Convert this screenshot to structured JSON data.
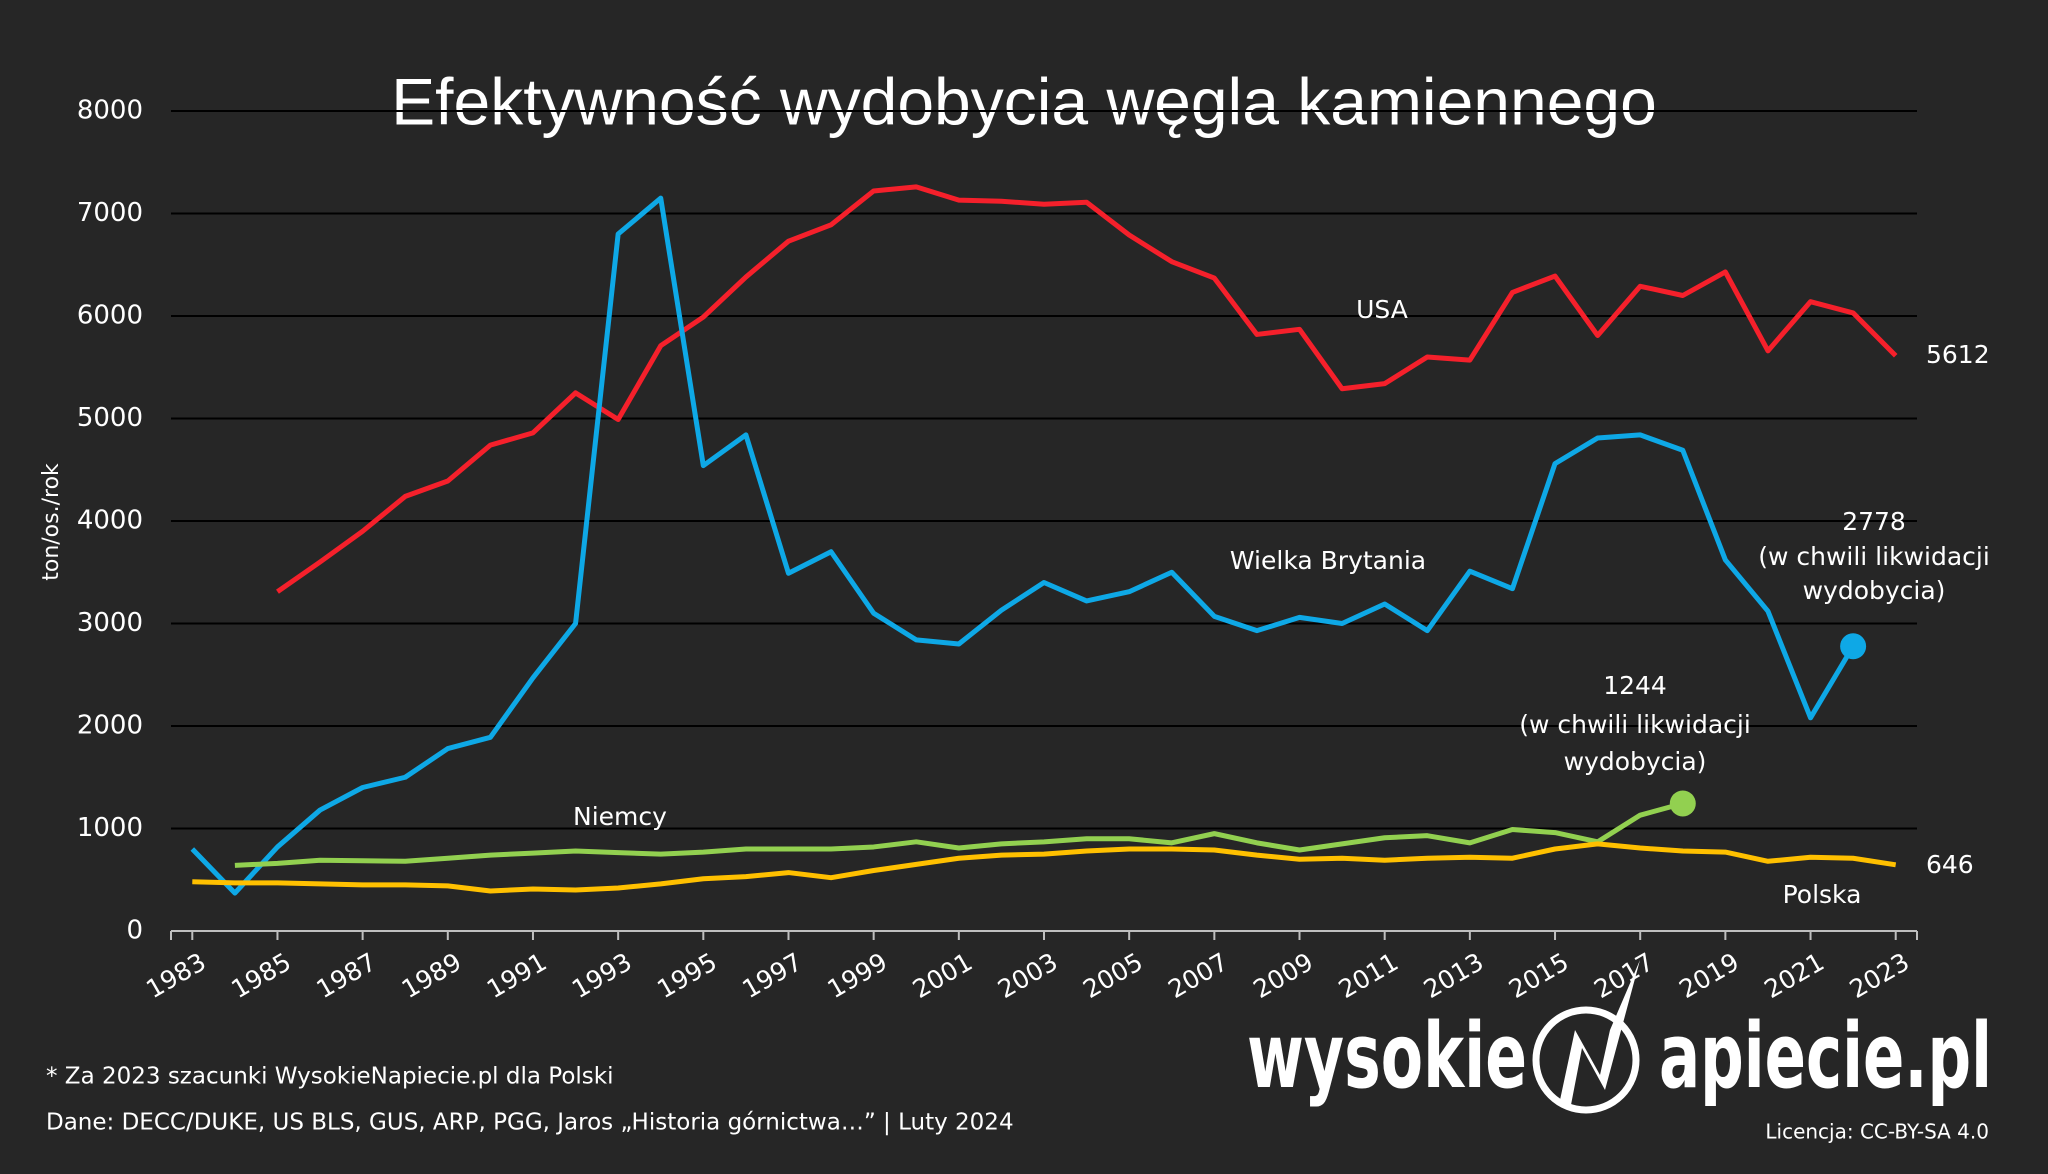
{
  "chart_data": {
    "type": "line",
    "title": "Efektywność wydobycia węgla kamiennego",
    "y_label": "ton/os./rok",
    "x": [
      1983,
      1984,
      1985,
      1986,
      1987,
      1988,
      1989,
      1990,
      1991,
      1992,
      1993,
      1994,
      1995,
      1996,
      1997,
      1998,
      1999,
      2000,
      2001,
      2002,
      2003,
      2004,
      2005,
      2006,
      2007,
      2008,
      2009,
      2010,
      2011,
      2012,
      2013,
      2014,
      2015,
      2016,
      2017,
      2018,
      2019,
      2020,
      2021,
      2022,
      2023
    ],
    "xlim": [
      1982.5,
      2023.5
    ],
    "xticks": [
      1983,
      1985,
      1987,
      1989,
      1991,
      1993,
      1995,
      1997,
      1999,
      2001,
      2003,
      2005,
      2007,
      2009,
      2011,
      2013,
      2015,
      2017,
      2019,
      2021,
      2023
    ],
    "ylim": [
      0,
      8000
    ],
    "yticks": [
      0,
      1000,
      2000,
      3000,
      4000,
      5000,
      6000,
      7000,
      8000
    ],
    "grid": true,
    "series": [
      {
        "name": "USA",
        "color": "#f5202b",
        "values": [
          null,
          null,
          3310,
          3600,
          3900,
          4240,
          4390,
          4740,
          4860,
          5250,
          4990,
          5710,
          5990,
          6380,
          6730,
          6890,
          7220,
          7260,
          7130,
          7120,
          7090,
          7110,
          6790,
          6530,
          6370,
          5820,
          5870,
          5290,
          5340,
          5600,
          5570,
          6230,
          6390,
          5810,
          6290,
          6200,
          6430,
          5660,
          6140,
          6030,
          5612
        ]
      },
      {
        "name": "Wielka Brytania",
        "color": "#0ea8e6",
        "values": [
          800,
          370,
          820,
          1180,
          1400,
          1500,
          1780,
          1890,
          2470,
          3000,
          6800,
          7150,
          4540,
          4840,
          3490,
          3700,
          3100,
          2840,
          2800,
          3130,
          3400,
          3220,
          3310,
          3500,
          3070,
          2930,
          3060,
          3000,
          3190,
          2930,
          3510,
          3340,
          4560,
          4810,
          4840,
          4690,
          3620,
          3120,
          2080,
          2778,
          null
        ]
      },
      {
        "name": "Niemcy",
        "color": "#92d050",
        "values": [
          null,
          640,
          660,
          690,
          685,
          680,
          710,
          740,
          760,
          780,
          765,
          750,
          770,
          800,
          800,
          800,
          820,
          870,
          810,
          850,
          870,
          900,
          900,
          860,
          950,
          860,
          790,
          850,
          910,
          930,
          860,
          990,
          960,
          870,
          1130,
          1244,
          null,
          null,
          null,
          null,
          null
        ]
      },
      {
        "name": "Polska",
        "color": "#ffc000",
        "values": [
          480,
          470,
          470,
          460,
          450,
          450,
          440,
          390,
          410,
          400,
          420,
          460,
          510,
          530,
          570,
          520,
          590,
          650,
          710,
          740,
          750,
          780,
          800,
          800,
          790,
          740,
          700,
          710,
          690,
          710,
          720,
          710,
          800,
          850,
          810,
          780,
          770,
          680,
          720,
          710,
          646
        ]
      }
    ],
    "annotations": [
      "(w chwili likwidacji",
      "wydobycia)",
      "(w chwili likwidacji",
      "wydobycia)"
    ],
    "footnotes": [
      "* Za 2023 szacunki WysokieNapiecie.pl dla Polski",
      "Dane: DECC/DUKE, US BLS, GUS, ARP, PGG, Jaros „Historia górnictwa…”  |  Luty 2024"
    ],
    "license": "Licencja: CC-BY-SA 4.0",
    "logo": {
      "left": "wysokie",
      "right": "apiecie.pl"
    }
  }
}
